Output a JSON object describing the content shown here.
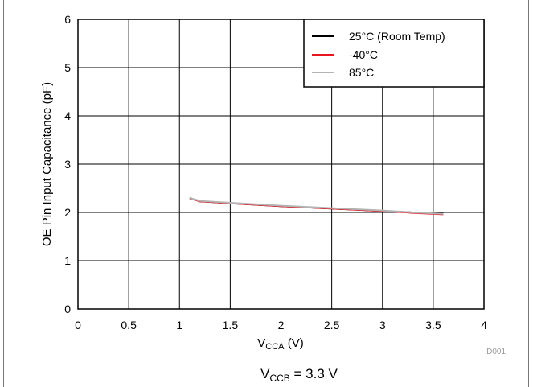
{
  "chart_data": {
    "type": "line",
    "ylabel": "OE Pin Input Capacitance (pF)",
    "xlabel_main": "V",
    "xlabel_sub": "CCA",
    "xlabel_tail": " (V)",
    "xlim": [
      0,
      4
    ],
    "ylim": [
      0,
      6
    ],
    "xticks": [
      "0",
      "0.5",
      "1",
      "1.5",
      "2",
      "2.5",
      "3",
      "3.5",
      "4"
    ],
    "yticks": [
      "0",
      "1",
      "2",
      "3",
      "4",
      "5",
      "6"
    ],
    "grid": true,
    "legend_position": "top-right",
    "series": [
      {
        "name": "25°C (Room Temp)",
        "color": "#000000",
        "x": [
          1.1,
          1.2,
          1.5,
          2.0,
          2.5,
          3.0,
          3.3,
          3.6
        ],
        "y": [
          2.3,
          2.23,
          2.19,
          2.13,
          2.08,
          2.03,
          2.0,
          1.97
        ]
      },
      {
        "name": "-40°C",
        "color": "#e8171f",
        "x": [
          1.1,
          1.2,
          1.5,
          2.0,
          2.5,
          3.0,
          3.3,
          3.6
        ],
        "y": [
          2.29,
          2.23,
          2.19,
          2.13,
          2.08,
          2.03,
          1.99,
          1.96
        ]
      },
      {
        "name": "85°C",
        "color": "#b4b4b4",
        "x": [
          1.1,
          1.2,
          1.5,
          2.0,
          2.5,
          3.0,
          3.3,
          3.6
        ],
        "y": [
          2.3,
          2.24,
          2.2,
          2.14,
          2.09,
          2.04,
          2.0,
          1.97
        ]
      }
    ]
  },
  "figure_id": "D001",
  "caption": {
    "main": "V",
    "sub": "CCB",
    "tail": " = 3.3 V"
  }
}
